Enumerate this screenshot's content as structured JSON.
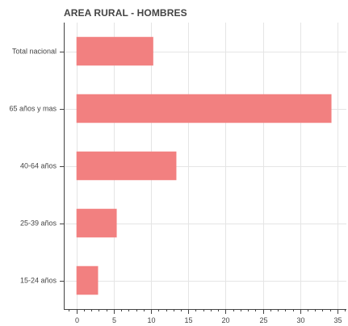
{
  "chart_data": {
    "type": "bar",
    "orientation": "horizontal",
    "title": "AREA RURAL - HOMBRES",
    "categories": [
      "Total nacional",
      "65 años y mas",
      "40-64 años",
      "25-39 años",
      "15-24 años"
    ],
    "values": [
      10.3,
      34.2,
      13.4,
      5.4,
      2.9
    ],
    "xlabel": "",
    "ylabel": "",
    "xlim": [
      -1.7,
      36.2
    ],
    "xticks": [
      0,
      5,
      10,
      15,
      20,
      25,
      30,
      35
    ],
    "grid": true,
    "legend": "none",
    "bar_color": "#f28080"
  }
}
